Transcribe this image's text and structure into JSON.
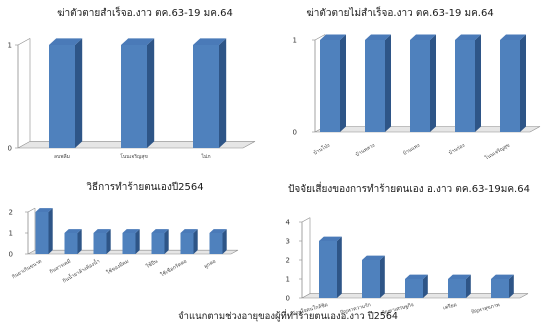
{
  "colors": {
    "bar_front": "#4f81bd",
    "bar_side": "#2e5587",
    "bar_top": "#4a7ab8",
    "axis": "#8c8c8c",
    "floor": "#e6e6e6"
  },
  "footer_text": "จำแนกตามช่วงอายุของผู้ที่ทำร้ายตนเองอ.งาว ปี2564",
  "chart_data": [
    {
      "type": "bar",
      "title": "ฆ่าตัวตายสำเร็จอ.งาว ตค.63-19 มค.64",
      "categories": [
        "ลบพลีม",
        "โนนเจริญสุข",
        "ไม่ภ"
      ],
      "values": [
        1,
        1,
        1
      ],
      "ylim": [
        0,
        1
      ],
      "yticks": [
        "0",
        "1"
      ]
    },
    {
      "type": "bar",
      "title": "ฆ่าตัวตายไม่สำเร็จอ.งาว ตค.63-19 มค.64",
      "categories": [
        "บ้านโป่ง",
        "บ้านหลวง",
        "บ้านแหง",
        "บ้านร่อง",
        "โนนเจริญสุข"
      ],
      "values": [
        1,
        1,
        1,
        1,
        1
      ],
      "ylim": [
        0,
        1
      ],
      "yticks": [
        "0",
        "1"
      ]
    },
    {
      "type": "bar",
      "title": "วิธีการทำร้ายตนเองปี2564",
      "categories": [
        "กินยาเกินขนาด",
        "กินสารเคมี",
        "กินน้ำยาล้างห้องน้ำ",
        "ใช้ของมีคม",
        "ใช้ปืน",
        "ใช้เชือกรัดคอ",
        "ผูกคอ"
      ],
      "values": [
        2,
        1,
        1,
        1,
        1,
        1,
        1
      ],
      "ylim": [
        0,
        2
      ],
      "yticks": [
        "0",
        "1",
        "2"
      ]
    },
    {
      "type": "bar",
      "title": "ปัจจัยเสี่ยงของการทำร้ายตนเอง อ.งาว ตค.63-19มค.64",
      "categories": [
        "น้อยใจคนใกล้ชิด",
        "ปัญหาความรัก",
        "ปัญหาเศรษฐกิจ",
        "เครียด",
        "ปัญหาสุขภาพ"
      ],
      "values": [
        3,
        2,
        1,
        1,
        1
      ],
      "ylim": [
        0,
        4
      ],
      "yticks": [
        "0",
        "1",
        "2",
        "3",
        "4"
      ]
    }
  ]
}
